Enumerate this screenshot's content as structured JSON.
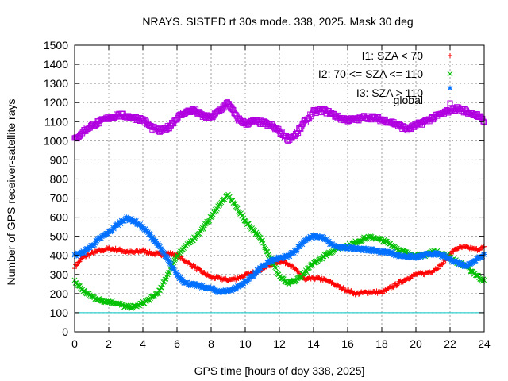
{
  "chart_data": {
    "type": "scatter",
    "title": "NRAYS. SISTED rt 30s mode. 338, 2025. Mask 30 deg",
    "xlabel": "GPS time [hours of doy 338, 2025]",
    "ylabel": "Number of GPS receiver-satellite rays",
    "xlim": [
      0,
      24
    ],
    "ylim": [
      0,
      1500
    ],
    "xticks": [
      "0",
      "2",
      "4",
      "6",
      "8",
      "10",
      "12",
      "14",
      "16",
      "18",
      "20",
      "22",
      "24"
    ],
    "yticks": [
      "0",
      "100",
      "200",
      "300",
      "400",
      "500",
      "600",
      "700",
      "800",
      "900",
      "1000",
      "1100",
      "1200",
      "1300",
      "1400",
      "1500"
    ],
    "grid": true,
    "legend_position": "top-right",
    "reference_line": {
      "y": 100,
      "color": "#00c8c8"
    },
    "series": [
      {
        "name": "I1: SZA < 70",
        "marker": "+",
        "color": "#ff0000",
        "x": [
          0,
          0.5,
          1,
          1.5,
          2,
          2.5,
          3,
          3.5,
          4,
          4.5,
          5,
          5.5,
          6,
          6.5,
          7,
          7.5,
          8,
          8.5,
          9,
          9.5,
          10,
          10.5,
          11,
          11.5,
          12,
          12.5,
          13,
          13.5,
          14,
          14.5,
          15,
          15.5,
          16,
          16.5,
          17,
          17.5,
          18,
          18.5,
          19,
          19.5,
          20,
          20.5,
          21,
          21.5,
          22,
          22.5,
          23,
          23.5,
          24
        ],
        "y": [
          340,
          390,
          410,
          425,
          435,
          430,
          420,
          415,
          425,
          410,
          405,
          410,
          400,
          370,
          340,
          310,
          285,
          280,
          270,
          280,
          295,
          310,
          330,
          350,
          370,
          360,
          320,
          270,
          280,
          275,
          260,
          235,
          215,
          200,
          205,
          210,
          205,
          230,
          255,
          280,
          300,
          305,
          320,
          350,
          410,
          440,
          440,
          430,
          440
        ]
      },
      {
        "name": "I2: 70 <= SZA <= 110",
        "marker": "x",
        "color": "#00c000",
        "x": [
          0,
          0.5,
          1,
          1.5,
          2,
          2.5,
          3,
          3.5,
          4,
          4.5,
          5,
          5.5,
          6,
          6.5,
          7,
          7.5,
          8,
          8.5,
          9,
          9.5,
          10,
          10.5,
          11,
          11.5,
          12,
          12.5,
          13,
          13.5,
          14,
          14.5,
          15,
          15.5,
          16,
          16.5,
          17,
          17.5,
          18,
          18.5,
          19,
          19.5,
          20,
          20.5,
          21,
          21.5,
          22,
          22.5,
          23,
          23.5,
          24
        ],
        "y": [
          265,
          215,
          185,
          165,
          158,
          150,
          130,
          130,
          150,
          175,
          215,
          310,
          400,
          445,
          490,
          540,
          600,
          670,
          715,
          650,
          580,
          530,
          475,
          380,
          290,
          250,
          270,
          310,
          360,
          390,
          420,
          440,
          450,
          470,
          490,
          495,
          480,
          460,
          430,
          410,
          400,
          400,
          420,
          410,
          390,
          360,
          340,
          300,
          265
        ]
      },
      {
        "name": "I3: SZA > 110",
        "marker": "*",
        "color": "#0070ff",
        "x": [
          0,
          0.5,
          1,
          1.5,
          2,
          2.5,
          3,
          3.5,
          4,
          4.5,
          5,
          5.5,
          6,
          6.5,
          7,
          7.5,
          8,
          8.5,
          9,
          9.5,
          10,
          10.5,
          11,
          11.5,
          12,
          12.5,
          13,
          13.5,
          14,
          14.5,
          15,
          15.5,
          16,
          16.5,
          17,
          17.5,
          18,
          18.5,
          19,
          19.5,
          20,
          20.5,
          21,
          21.5,
          22,
          22.5,
          23,
          23.5,
          24
        ],
        "y": [
          400,
          415,
          450,
          490,
          520,
          560,
          595,
          580,
          545,
          500,
          440,
          370,
          300,
          255,
          245,
          235,
          225,
          210,
          215,
          230,
          260,
          300,
          340,
          370,
          385,
          395,
          430,
          480,
          500,
          495,
          460,
          440,
          440,
          440,
          430,
          425,
          420,
          415,
          400,
          395,
          390,
          400,
          410,
          400,
          380,
          360,
          345,
          380,
          405
        ]
      },
      {
        "name": "global",
        "marker": "square",
        "color": "#b000e0",
        "x": [
          0,
          0.5,
          1,
          1.5,
          2,
          2.5,
          3,
          3.5,
          4,
          4.5,
          5,
          5.5,
          6,
          6.5,
          7,
          7.5,
          8,
          8.5,
          9,
          9.5,
          10,
          10.5,
          11,
          11.5,
          12,
          12.5,
          13,
          13.5,
          14,
          14.5,
          15,
          15.5,
          16,
          16.5,
          17,
          17.5,
          18,
          18.5,
          19,
          19.5,
          20,
          20.5,
          21,
          21.5,
          22,
          22.5,
          23,
          23.5,
          24
        ],
        "y": [
          1005,
          1050,
          1080,
          1100,
          1120,
          1135,
          1130,
          1120,
          1110,
          1070,
          1050,
          1070,
          1120,
          1150,
          1160,
          1130,
          1120,
          1160,
          1200,
          1120,
          1090,
          1100,
          1095,
          1080,
          1050,
          1010,
          1035,
          1100,
          1150,
          1160,
          1145,
          1120,
          1110,
          1110,
          1125,
          1120,
          1110,
          1100,
          1080,
          1060,
          1080,
          1100,
          1120,
          1140,
          1160,
          1170,
          1150,
          1140,
          1100
        ]
      }
    ]
  }
}
